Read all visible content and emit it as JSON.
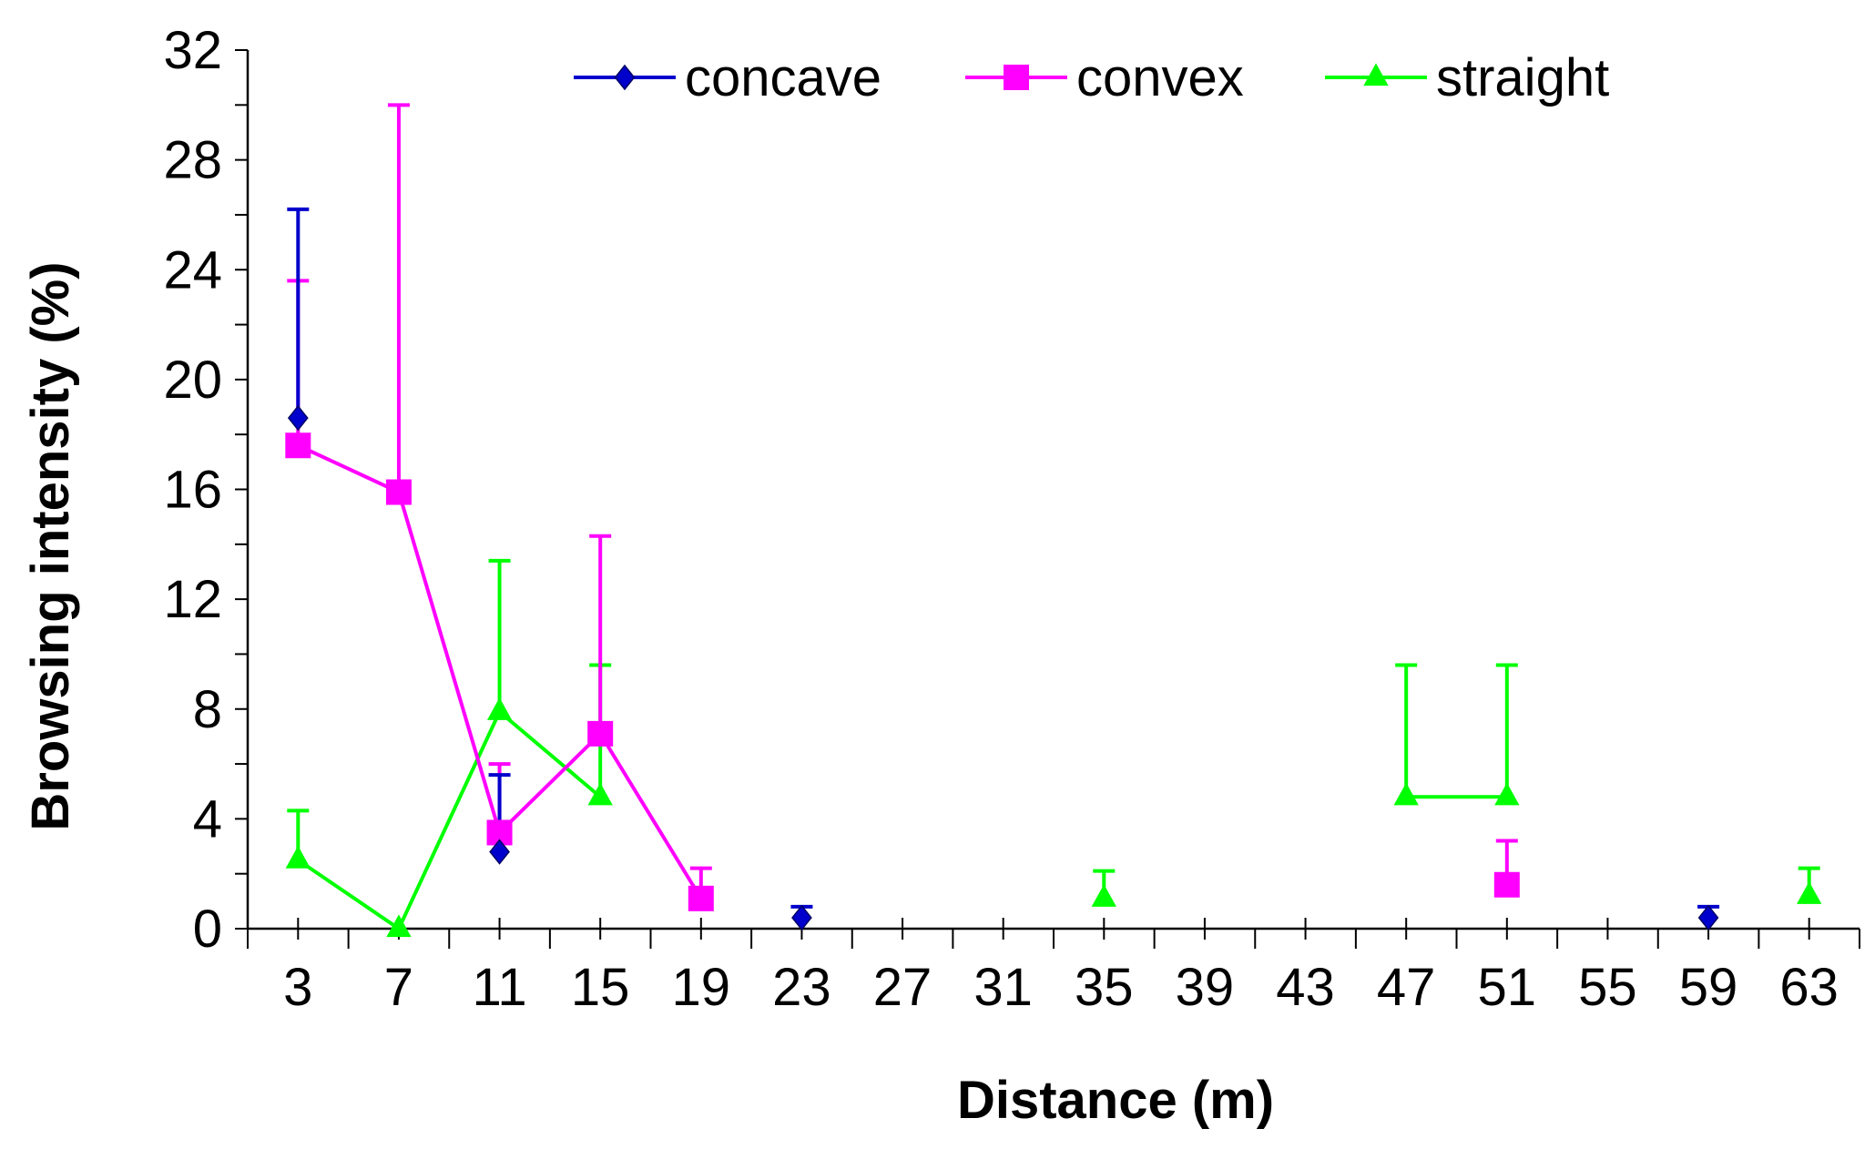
{
  "chart_data": {
    "type": "line",
    "title": "",
    "xlabel": "Distance (m)",
    "ylabel": "Browsing intensity (%)",
    "xlim": [
      1,
      65
    ],
    "ylim": [
      0,
      32
    ],
    "x_ticks": [
      3,
      7,
      11,
      15,
      19,
      23,
      27,
      31,
      35,
      39,
      43,
      47,
      51,
      55,
      59,
      63
    ],
    "y_ticks": [
      0,
      4,
      8,
      12,
      16,
      20,
      24,
      28,
      32
    ],
    "legend_position": "top",
    "series": [
      {
        "name": "concave",
        "color": "#0000CC",
        "marker": "diamond",
        "points": [
          {
            "x": 3,
            "y": 18.6,
            "err": 7.6
          },
          {
            "x": 11,
            "y": 2.8,
            "err": 2.8
          },
          {
            "x": 23,
            "y": 0.4,
            "err": 0.4
          },
          {
            "x": 59,
            "y": 0.4,
            "err": 0.4
          }
        ]
      },
      {
        "name": "convex",
        "color": "#FF00FF",
        "marker": "square",
        "points": [
          {
            "x": 3,
            "y": 17.6,
            "err": 6.0
          },
          {
            "x": 7,
            "y": 15.9,
            "err": 14.1
          },
          {
            "x": 11,
            "y": 3.5,
            "err": 2.5
          },
          {
            "x": 15,
            "y": 7.1,
            "err": 7.2
          },
          {
            "x": 19,
            "y": 1.1,
            "err": 1.1
          },
          {
            "x": 51,
            "y": 1.6,
            "err": 1.6
          }
        ]
      },
      {
        "name": "straight",
        "color": "#00FF00",
        "marker": "triangle",
        "points": [
          {
            "x": 3,
            "y": 2.5,
            "err": 1.8
          },
          {
            "x": 7,
            "y": 0.0,
            "err": 0
          },
          {
            "x": 11,
            "y": 7.9,
            "err": 5.5
          },
          {
            "x": 15,
            "y": 4.8,
            "err": 4.8
          },
          {
            "x": 35,
            "y": 1.1,
            "err": 1.0
          },
          {
            "x": 47,
            "y": 4.8,
            "err": 4.8
          },
          {
            "x": 51,
            "y": 4.8,
            "err": 4.8
          },
          {
            "x": 63,
            "y": 1.2,
            "err": 1.0
          }
        ]
      }
    ]
  }
}
